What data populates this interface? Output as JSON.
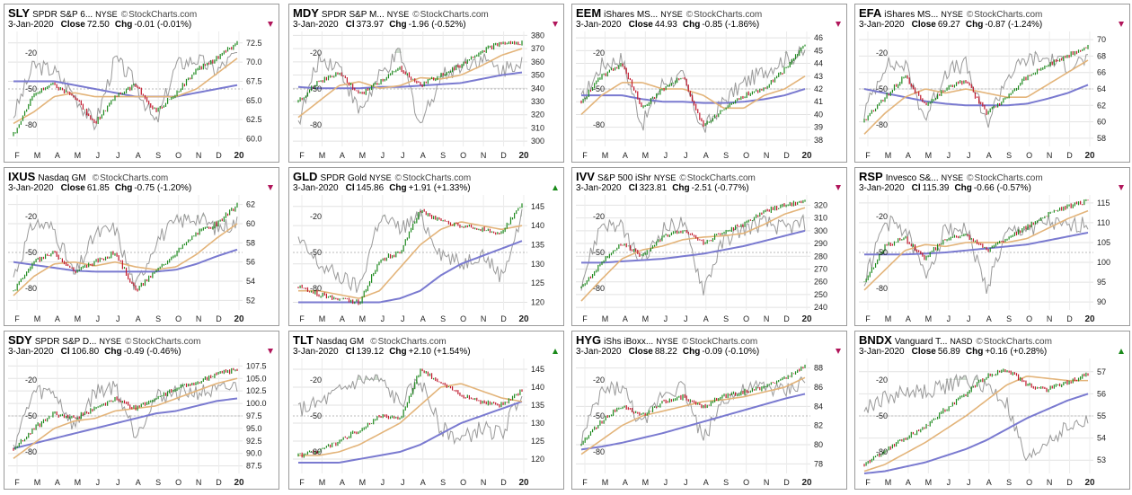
{
  "colors": {
    "up": "#1f8a1f",
    "down": "#c0182c",
    "ma50": "#e3b47a",
    "ma200": "#7a7ad0",
    "rsi_line": "#9a9a9a",
    "rsi_fill": "#b8ccb8"
  },
  "panels": [
    {
      "symbol": "SLY",
      "name": "SPDR S&P 6...",
      "exchange": "NYSE",
      "watermark": "StockCharts.com",
      "date": "3-Jan-2020",
      "price_label": "Close",
      "price": "72.50",
      "chg_label": "Chg",
      "chg": "-0.01 (-0.01%)",
      "direction": "down",
      "y_labels": [
        "72.5",
        "70.0",
        "67.5",
        "65.0",
        "62.5",
        "60.0"
      ]
    },
    {
      "symbol": "MDY",
      "name": "SPDR S&P M...",
      "exchange": "NYSE",
      "watermark": "StockCharts.com",
      "date": "3-Jan-2020",
      "price_label": "Cl",
      "price": "373.97",
      "chg_label": "Chg",
      "chg": "-1.96 (-0.52%)",
      "direction": "down",
      "y_labels": [
        "380",
        "370",
        "360",
        "350",
        "340",
        "330",
        "320",
        "310",
        "300"
      ]
    },
    {
      "symbol": "EEM",
      "name": "iShares MS...",
      "exchange": "NYSE",
      "watermark": "StockCharts.com",
      "date": "3-Jan-2020",
      "price_label": "Close",
      "price": "44.93",
      "chg_label": "Chg",
      "chg": "-0.85 (-1.86%)",
      "direction": "down",
      "y_labels": [
        "46",
        "45",
        "44",
        "43",
        "42",
        "41",
        "40",
        "39",
        "38"
      ]
    },
    {
      "symbol": "EFA",
      "name": "iShares MS...",
      "exchange": "NYSE",
      "watermark": "StockCharts.com",
      "date": "3-Jan-2020",
      "price_label": "Close",
      "price": "69.27",
      "chg_label": "Chg",
      "chg": "-0.87 (-1.24%)",
      "direction": "down",
      "y_labels": [
        "70",
        "68",
        "66",
        "64",
        "62",
        "60",
        "58"
      ]
    },
    {
      "symbol": "IXUS",
      "name": "Nasdaq GM",
      "exchange": "",
      "watermark": "StockCharts.com",
      "date": "3-Jan-2020",
      "price_label": "Close",
      "price": "61.85",
      "chg_label": "Chg",
      "chg": "-0.75 (-1.20%)",
      "direction": "down",
      "y_labels": [
        "62",
        "60",
        "58",
        "56",
        "54",
        "52"
      ]
    },
    {
      "symbol": "GLD",
      "name": "SPDR Gold",
      "exchange": "NYSE",
      "watermark": "StockCharts.com",
      "date": "3-Jan-2020",
      "price_label": "Cl",
      "price": "145.86",
      "chg_label": "Chg",
      "chg": "+1.91 (+1.33%)",
      "direction": "up",
      "y_labels": [
        "145",
        "140",
        "135",
        "130",
        "125",
        "120"
      ]
    },
    {
      "symbol": "IVV",
      "name": "S&P 500 iShr",
      "exchange": "NYSE",
      "watermark": "StockCharts.com",
      "date": "3-Jan-2020",
      "price_label": "Cl",
      "price": "323.81",
      "chg_label": "Chg",
      "chg": "-2.51 (-0.77%)",
      "direction": "down",
      "y_labels": [
        "320",
        "310",
        "300",
        "290",
        "280",
        "270",
        "260",
        "250",
        "240"
      ]
    },
    {
      "symbol": "RSP",
      "name": "Invesco S&...",
      "exchange": "NYSE",
      "watermark": "StockCharts.com",
      "date": "3-Jan-2020",
      "price_label": "Cl",
      "price": "115.39",
      "chg_label": "Chg",
      "chg": "-0.66 (-0.57%)",
      "direction": "down",
      "y_labels": [
        "115",
        "110",
        "105",
        "100",
        "95",
        "90"
      ]
    },
    {
      "symbol": "SDY",
      "name": "SPDR S&P D...",
      "exchange": "NYSE",
      "watermark": "StockCharts.com",
      "date": "3-Jan-2020",
      "price_label": "Cl",
      "price": "106.80",
      "chg_label": "Chg",
      "chg": "-0.49 (-0.46%)",
      "direction": "down",
      "y_labels": [
        "107.5",
        "105.0",
        "102.5",
        "100.0",
        "97.5",
        "95.0",
        "92.5",
        "90.0",
        "87.5"
      ]
    },
    {
      "symbol": "TLT",
      "name": "Nasdaq GM",
      "exchange": "",
      "watermark": "StockCharts.com",
      "date": "3-Jan-2020",
      "price_label": "Cl",
      "price": "139.12",
      "chg_label": "Chg",
      "chg": "+2.10 (+1.54%)",
      "direction": "up",
      "y_labels": [
        "145",
        "140",
        "135",
        "130",
        "125",
        "120"
      ]
    },
    {
      "symbol": "HYG",
      "name": "iShs iBoxx...",
      "exchange": "NYSE",
      "watermark": "StockCharts.com",
      "date": "3-Jan-2020",
      "price_label": "Close",
      "price": "88.22",
      "chg_label": "Chg",
      "chg": "-0.09 (-0.10%)",
      "direction": "down",
      "y_labels": [
        "88",
        "86",
        "84",
        "82",
        "80",
        "78"
      ]
    },
    {
      "symbol": "BNDX",
      "name": "Vanguard T...",
      "exchange": "NASD",
      "watermark": "StockCharts.com",
      "date": "3-Jan-2020",
      "price_label": "Close",
      "price": "56.89",
      "chg_label": "Chg",
      "chg": "+0.16 (+0.28%)",
      "direction": "up",
      "y_labels": [
        "57",
        "56",
        "55",
        "54",
        "53"
      ]
    }
  ],
  "chart_data": [
    {
      "type": "line",
      "symbol": "SLY",
      "ylim": [
        59,
        74
      ],
      "x": [
        "F",
        "M",
        "A",
        "M",
        "J",
        "J",
        "A",
        "S",
        "O",
        "N",
        "D",
        "20"
      ],
      "price": [
        60.5,
        66,
        67,
        65.5,
        62,
        65.5,
        67,
        63.5,
        66,
        69,
        70.5,
        72.5
      ],
      "ma50": [
        62,
        63.5,
        65.5,
        66,
        65.5,
        65.5,
        65.5,
        65.5,
        65.5,
        66.5,
        68.5,
        70.5
      ],
      "ma200": [
        67.5,
        67.5,
        67.5,
        67,
        66.5,
        66,
        65.5,
        65.5,
        65.5,
        66,
        66.5,
        67
      ],
      "rsi_scale": [
        -20,
        -50,
        -80
      ],
      "rsi": [
        -72,
        -30,
        -35,
        -55,
        -80,
        -25,
        -45,
        -80,
        -30,
        -25,
        -35,
        -20
      ]
    },
    {
      "type": "line",
      "symbol": "MDY",
      "ylim": [
        296,
        383
      ],
      "x": [
        "F",
        "M",
        "A",
        "M",
        "J",
        "J",
        "A",
        "S",
        "O",
        "N",
        "D",
        "20"
      ],
      "price": [
        330,
        345,
        352,
        335,
        345,
        355,
        342,
        350,
        358,
        368,
        374,
        374
      ],
      "ma50": [
        318,
        330,
        342,
        345,
        340,
        342,
        348,
        347,
        350,
        357,
        365,
        370
      ],
      "ma200": [
        341,
        340,
        340,
        340,
        341,
        341,
        342,
        343,
        344,
        347,
        350,
        352
      ],
      "rsi_scale": [
        -20,
        -50,
        -80
      ],
      "rsi": [
        -78,
        -25,
        -30,
        -70,
        -40,
        -20,
        -80,
        -40,
        -30,
        -25,
        -35,
        -25
      ]
    },
    {
      "type": "line",
      "symbol": "EEM",
      "ylim": [
        37.5,
        46.5
      ],
      "x": [
        "F",
        "M",
        "A",
        "M",
        "J",
        "J",
        "A",
        "S",
        "O",
        "N",
        "D",
        "20"
      ],
      "price": [
        41,
        43,
        44,
        40.5,
        42,
        43,
        39,
        40.5,
        41.5,
        42,
        43.5,
        45.5
      ],
      "ma50": [
        40,
        41.5,
        42.5,
        42.5,
        42,
        42,
        41.5,
        40.5,
        40.5,
        41.5,
        42,
        43
      ],
      "ma200": [
        41.5,
        41.5,
        41.5,
        41.2,
        41,
        41,
        40.9,
        40.9,
        41,
        41.2,
        41.5,
        42
      ],
      "rsi_scale": [
        -20,
        -50,
        -80
      ],
      "rsi": [
        -60,
        -30,
        -25,
        -80,
        -45,
        -40,
        -85,
        -60,
        -45,
        -35,
        -25,
        -20
      ]
    },
    {
      "type": "line",
      "symbol": "EFA",
      "ylim": [
        57,
        71
      ],
      "x": [
        "F",
        "M",
        "A",
        "M",
        "J",
        "J",
        "A",
        "S",
        "O",
        "N",
        "D",
        "20"
      ],
      "price": [
        60,
        63,
        65.5,
        62,
        64,
        65,
        61,
        63,
        65.5,
        67,
        68,
        69.3
      ],
      "ma50": [
        58.5,
        61,
        63,
        64,
        63.5,
        64,
        63.5,
        63,
        63,
        64.5,
        66,
        67.5
      ],
      "ma200": [
        64,
        63.5,
        63,
        62.5,
        62.2,
        62,
        62,
        62,
        62.2,
        62.8,
        63.5,
        64.5
      ],
      "rsi_scale": [
        -20,
        -50,
        -80
      ],
      "rsi": [
        -70,
        -30,
        -30,
        -75,
        -35,
        -30,
        -80,
        -40,
        -25,
        -25,
        -30,
        -25
      ]
    },
    {
      "type": "line",
      "symbol": "IXUS",
      "ylim": [
        51,
        63
      ],
      "x": [
        "F",
        "M",
        "A",
        "M",
        "J",
        "J",
        "A",
        "S",
        "O",
        "N",
        "D",
        "20"
      ],
      "price": [
        53,
        56,
        57,
        55,
        56,
        57,
        53,
        55,
        57,
        59,
        60,
        61.9
      ],
      "ma50": [
        52.5,
        54.5,
        55.8,
        56,
        55.6,
        56,
        55.5,
        55.2,
        55.5,
        56.8,
        58.5,
        60
      ],
      "ma200": [
        56,
        55.7,
        55.4,
        55.1,
        55,
        55,
        55,
        55,
        55.2,
        55.8,
        56.6,
        57.3
      ],
      "rsi_scale": [
        -20,
        -50,
        -80
      ],
      "rsi": [
        -70,
        -25,
        -30,
        -70,
        -35,
        -30,
        -80,
        -40,
        -25,
        -20,
        -30,
        -25
      ]
    },
    {
      "type": "line",
      "symbol": "GLD",
      "ylim": [
        118,
        148
      ],
      "x": [
        "F",
        "M",
        "A",
        "M",
        "J",
        "J",
        "A",
        "S",
        "O",
        "N",
        "D",
        "20"
      ],
      "price": [
        124,
        122,
        121,
        120,
        131,
        133,
        144,
        141,
        140,
        139,
        138,
        145.9
      ],
      "ma50": [
        123,
        123,
        122,
        121,
        123,
        129,
        135,
        139,
        141,
        140,
        139,
        140
      ],
      "ma200": [
        120,
        120,
        120,
        120,
        120,
        121,
        123,
        127,
        130,
        132,
        134,
        136
      ],
      "rsi_scale": [
        -20,
        -50,
        -80
      ],
      "rsi": [
        -40,
        -60,
        -70,
        -80,
        -20,
        -30,
        -20,
        -50,
        -60,
        -50,
        -70,
        -20
      ]
    },
    {
      "type": "line",
      "symbol": "IVV",
      "ylim": [
        238,
        328
      ],
      "x": [
        "F",
        "M",
        "A",
        "M",
        "J",
        "J",
        "A",
        "S",
        "O",
        "N",
        "D",
        "20"
      ],
      "price": [
        255,
        275,
        290,
        280,
        295,
        300,
        290,
        300,
        305,
        315,
        320,
        323.8
      ],
      "ma50": [
        245,
        262,
        278,
        285,
        288,
        293,
        295,
        296,
        298,
        305,
        313,
        318
      ],
      "ma200": [
        275,
        275,
        276,
        277,
        278,
        280,
        282,
        285,
        288,
        292,
        296,
        300
      ],
      "rsi_scale": [
        -20,
        -50,
        -80
      ],
      "rsi": [
        -75,
        -25,
        -30,
        -60,
        -30,
        -25,
        -80,
        -40,
        -30,
        -25,
        -30,
        -25
      ]
    },
    {
      "type": "line",
      "symbol": "RSP",
      "ylim": [
        88,
        117
      ],
      "x": [
        "F",
        "M",
        "A",
        "M",
        "J",
        "J",
        "A",
        "S",
        "O",
        "N",
        "D",
        "20"
      ],
      "price": [
        95,
        104,
        106,
        101,
        106,
        107,
        103,
        106,
        109,
        112,
        114,
        115.4
      ],
      "ma50": [
        93,
        98,
        103,
        104.5,
        104,
        105,
        105,
        105,
        106,
        108.5,
        111,
        113
      ],
      "ma200": [
        102,
        102,
        102,
        102.2,
        102.5,
        103,
        103.5,
        104,
        104.5,
        105.5,
        106.5,
        107.5
      ],
      "rsi_scale": [
        -20,
        -50,
        -80
      ],
      "rsi": [
        -75,
        -25,
        -30,
        -70,
        -30,
        -30,
        -80,
        -35,
        -30,
        -25,
        -30,
        -25
      ]
    },
    {
      "type": "line",
      "symbol": "SDY",
      "ylim": [
        86,
        109
      ],
      "x": [
        "F",
        "M",
        "A",
        "M",
        "J",
        "J",
        "A",
        "S",
        "O",
        "N",
        "D",
        "20"
      ],
      "price": [
        91,
        95,
        98,
        97,
        99,
        101,
        99,
        101,
        103,
        104,
        106,
        106.8
      ],
      "ma50": [
        89,
        92,
        95,
        96.5,
        97,
        98.5,
        99,
        99.5,
        101,
        102.5,
        104,
        105
      ],
      "ma200": [
        91,
        92,
        93,
        94,
        95,
        96,
        97,
        98,
        98.5,
        99.5,
        100.5,
        101
      ],
      "rsi_scale": [
        -20,
        -50,
        -80
      ],
      "rsi": [
        -75,
        -30,
        -30,
        -60,
        -30,
        -25,
        -65,
        -35,
        -30,
        -30,
        -30,
        -25
      ]
    },
    {
      "type": "line",
      "symbol": "TLT",
      "ylim": [
        116,
        148
      ],
      "x": [
        "F",
        "M",
        "A",
        "M",
        "J",
        "J",
        "A",
        "S",
        "O",
        "N",
        "D",
        "20"
      ],
      "price": [
        121,
        122,
        125,
        128,
        132,
        131,
        145,
        141,
        138,
        136,
        135,
        139.1
      ],
      "ma50": [
        121,
        121,
        122,
        124,
        127,
        130,
        135,
        140,
        141,
        139,
        137,
        136
      ],
      "ma200": [
        119,
        119,
        119,
        120,
        121,
        122,
        124,
        127,
        130,
        132,
        134,
        136
      ],
      "rsi_scale": [
        -20,
        -50,
        -80
      ],
      "rsi": [
        -45,
        -40,
        -30,
        -20,
        -20,
        -40,
        -20,
        -60,
        -70,
        -60,
        -65,
        -30
      ]
    },
    {
      "type": "line",
      "symbol": "HYG",
      "ylim": [
        77,
        89
      ],
      "x": [
        "F",
        "M",
        "A",
        "M",
        "J",
        "J",
        "A",
        "S",
        "O",
        "N",
        "D",
        "20"
      ],
      "price": [
        80,
        82.5,
        84,
        83,
        84.5,
        85,
        84,
        85,
        85.5,
        86,
        87,
        88.2
      ],
      "ma50": [
        79,
        80.5,
        82,
        83,
        83.5,
        84,
        84.5,
        84.7,
        85,
        85.5,
        86,
        87
      ],
      "ma200": [
        79.5,
        79.8,
        80.2,
        80.7,
        81.2,
        81.8,
        82.4,
        83,
        83.6,
        84.2,
        84.8,
        85.3
      ],
      "rsi_scale": [
        -20,
        -50,
        -80
      ],
      "rsi": [
        -70,
        -30,
        -25,
        -60,
        -30,
        -25,
        -70,
        -35,
        -30,
        -25,
        -30,
        -20
      ]
    },
    {
      "type": "line",
      "symbol": "BNDX",
      "ylim": [
        52.4,
        57.6
      ],
      "x": [
        "F",
        "M",
        "A",
        "M",
        "J",
        "J",
        "A",
        "S",
        "O",
        "N",
        "D",
        "20"
      ],
      "price": [
        52.8,
        53.4,
        54,
        54.5,
        55.3,
        56,
        56.8,
        57.1,
        56.4,
        56.2,
        56.5,
        56.9
      ],
      "ma50": [
        52.5,
        52.8,
        53.3,
        53.8,
        54.4,
        55,
        55.7,
        56.4,
        56.8,
        56.7,
        56.6,
        56.6
      ],
      "ma200": [
        52.4,
        52.5,
        52.7,
        52.9,
        53.2,
        53.5,
        53.9,
        54.4,
        54.9,
        55.3,
        55.7,
        56
      ],
      "rsi_scale": [
        -20,
        -50,
        -80
      ],
      "rsi": [
        -45,
        -35,
        -30,
        -30,
        -25,
        -20,
        -25,
        -40,
        -90,
        -70,
        -60,
        -55
      ]
    }
  ]
}
